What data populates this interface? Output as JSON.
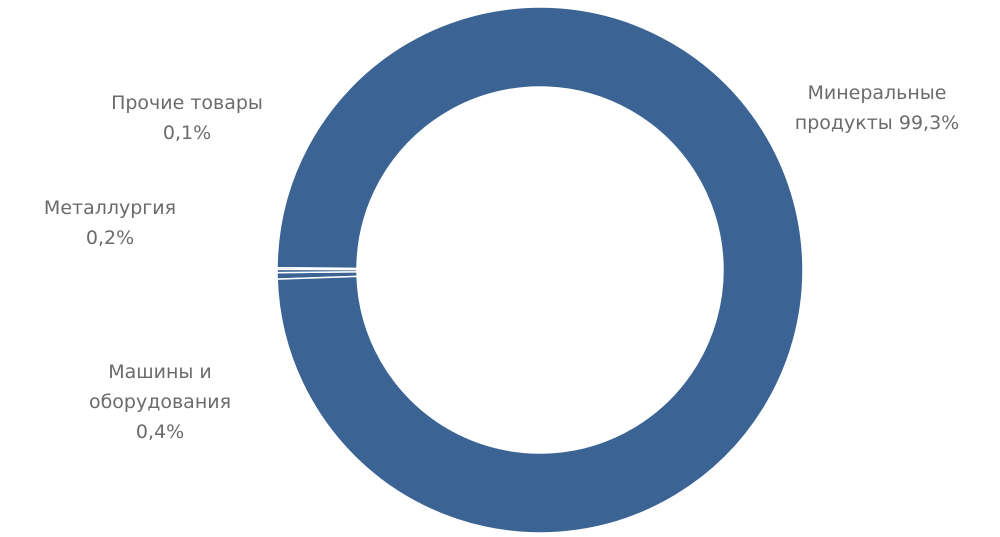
{
  "chart_data": {
    "type": "donut",
    "categories": [
      "Машины и оборудования",
      "Металлургия",
      "Прочие товары",
      "Минеральные продукты"
    ],
    "values": [
      0.4,
      0.2,
      0.1,
      99.3
    ],
    "value_labels": [
      "0,4%",
      "0,2%",
      "0,1%",
      "99,3%"
    ],
    "color": "#3b6494"
  }
}
